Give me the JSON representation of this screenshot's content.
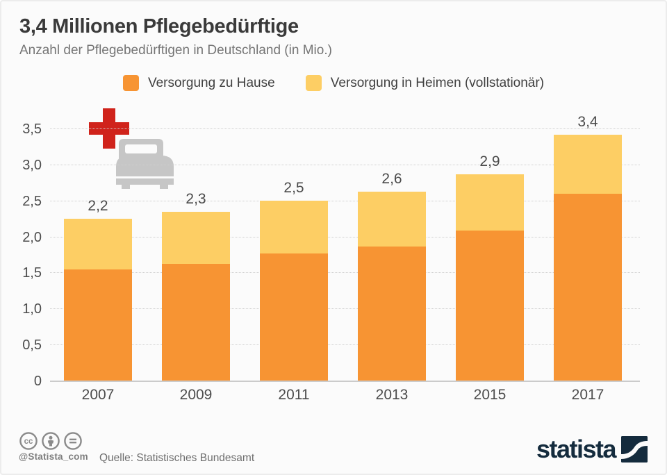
{
  "header": {
    "title": "3,4 Millionen Pflegebedürftige",
    "subtitle": "Anzahl der Pflegebedürftigen in Deutschland (in Mio.)"
  },
  "legend": {
    "items": [
      {
        "label": "Versorgung zu Hause",
        "color": "#F79433"
      },
      {
        "label": "Versorgung in Heimen (vollstationär)",
        "color": "#FDCE64"
      }
    ]
  },
  "chart_data": {
    "type": "bar",
    "stacked": true,
    "categories": [
      "2007",
      "2009",
      "2011",
      "2013",
      "2015",
      "2017"
    ],
    "series": [
      {
        "name": "Versorgung zu Hause",
        "color": "#F79433",
        "values": [
          1.54,
          1.62,
          1.76,
          1.86,
          2.08,
          2.59
        ]
      },
      {
        "name": "Versorgung in Heimen (vollstationär)",
        "color": "#FDCE64",
        "values": [
          0.71,
          0.72,
          0.74,
          0.76,
          0.78,
          0.82
        ]
      }
    ],
    "totals": [
      2.25,
      2.34,
      2.5,
      2.62,
      2.86,
      3.41
    ],
    "total_labels": [
      "2,2",
      "2,3",
      "2,5",
      "2,6",
      "2,9",
      "3,4"
    ],
    "title": "3,4 Millionen Pflegebedürftige",
    "xlabel": "",
    "ylabel": "",
    "ylim": [
      0,
      3.5
    ],
    "ytick_step": 0.5,
    "ytick_labels": [
      "0",
      "0,5",
      "1,0",
      "1,5",
      "2,0",
      "2,5",
      "3,0",
      "3,5"
    ],
    "grid": "horizontal-dotted",
    "legend_position": "top-center"
  },
  "decor": {
    "cross_color": "#D0231B",
    "bed_color": "#C6C6C6"
  },
  "footer": {
    "handle": "@Statista_com",
    "source": "Quelle: Statistisches Bundesamt",
    "brand": "statista",
    "license_icons": [
      "cc",
      "by",
      "nd"
    ],
    "brand_color": "#142B3D",
    "icon_color": "#8A8A8A"
  }
}
